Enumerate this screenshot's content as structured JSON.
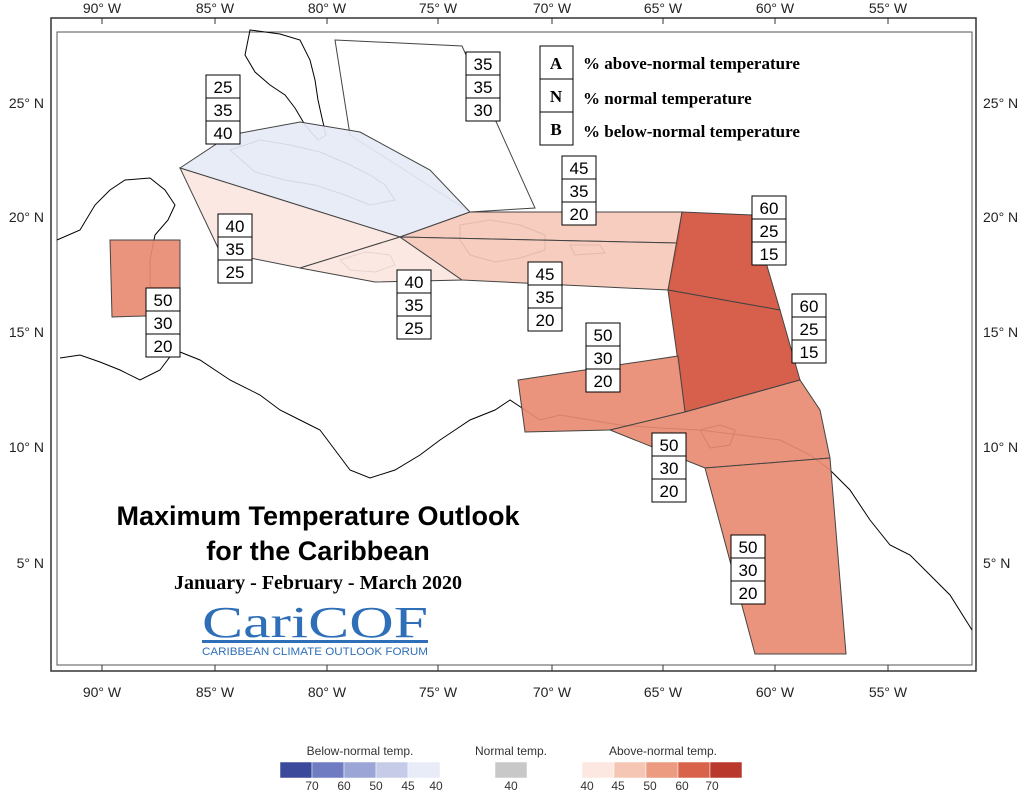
{
  "axes": {
    "lon_labels": [
      "90° W",
      "85° W",
      "80° W",
      "75° W",
      "70° W",
      "65° W",
      "60° W",
      "55° W"
    ],
    "lat_labels": [
      "25° N",
      "20° N",
      "15° N",
      "10° N",
      "5° N"
    ]
  },
  "legend": {
    "A": {
      "key": "A",
      "text": "% above-normal temperature"
    },
    "N": {
      "key": "N",
      "text": "% normal temperature"
    },
    "B": {
      "key": "B",
      "text": "% below-normal temperature"
    }
  },
  "title": {
    "line1": "Maximum Temperature Outlook",
    "line2": "for the Caribbean",
    "period": "January - February - March 2020"
  },
  "logo": {
    "name": "CariCOF",
    "subtitle": "CARIBBEAN CLIMATE OUTLOOK FORUM"
  },
  "regions": [
    {
      "id": "cuba",
      "A": "25",
      "N": "35",
      "B": "40",
      "fill": "#e6eaf6"
    },
    {
      "id": "bahamas",
      "A": "35",
      "N": "35",
      "B": "30",
      "fill": "#ffffff"
    },
    {
      "id": "west-caribbean",
      "A": "40",
      "N": "35",
      "B": "25",
      "fill": "#fbe6e0"
    },
    {
      "id": "jamaica",
      "A": "40",
      "N": "35",
      "B": "25",
      "fill": "#fbe6e0"
    },
    {
      "id": "hispaniola-north",
      "A": "45",
      "N": "35",
      "B": "20",
      "fill": "#f5c9ba"
    },
    {
      "id": "hispaniola-pr",
      "A": "45",
      "N": "35",
      "B": "20",
      "fill": "#f5c9ba"
    },
    {
      "id": "belize",
      "A": "50",
      "N": "30",
      "B": "20",
      "fill": "#e98b72"
    },
    {
      "id": "leeward",
      "A": "60",
      "N": "25",
      "B": "15",
      "fill": "#d4533d"
    },
    {
      "id": "windward",
      "A": "60",
      "N": "25",
      "B": "15",
      "fill": "#d4533d"
    },
    {
      "id": "abc-islands",
      "A": "50",
      "N": "30",
      "B": "20",
      "fill": "#e98b72"
    },
    {
      "id": "trinidad",
      "A": "50",
      "N": "30",
      "B": "20",
      "fill": "#e98b72"
    },
    {
      "id": "guianas",
      "A": "50",
      "N": "30",
      "B": "20",
      "fill": "#e98b72"
    }
  ],
  "colorbar": {
    "below": {
      "title": "Below-normal temp.",
      "ticks": [
        "70",
        "60",
        "50",
        "45",
        "40"
      ],
      "colors": [
        "#3b4a9a",
        "#6f7cc2",
        "#9ba5d6",
        "#c6cce8",
        "#e8ecf8"
      ]
    },
    "normal": {
      "title": "Normal temp.",
      "ticks": [
        "40"
      ],
      "colors": [
        "#c8c8c8"
      ]
    },
    "above": {
      "title": "Above-normal temp.",
      "ticks": [
        "40",
        "45",
        "50",
        "60",
        "70"
      ],
      "colors": [
        "#fde8e1",
        "#f6c6b5",
        "#ec9a80",
        "#d9634a",
        "#b93a2c"
      ]
    }
  }
}
